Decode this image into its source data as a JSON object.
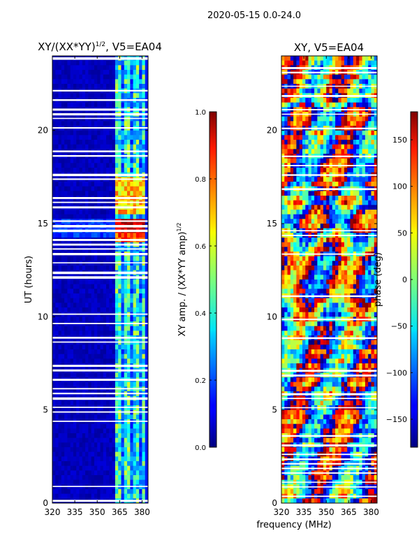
{
  "figure": {
    "suptitle": "2020-05-15 0.0-24.0",
    "shared_xlabel": "frequency (MHz)"
  },
  "chart_data": [
    {
      "type": "heatmap",
      "title_main": "XY/(XX*YY)",
      "title_sup": "1/2",
      "title_tail": ", V5=EA04",
      "ylabel": "UT (hours)",
      "x_ticks": [
        320,
        335,
        350,
        365,
        380
      ],
      "y_ticks": [
        0,
        5,
        10,
        15,
        20
      ],
      "xlim": [
        320,
        384
      ],
      "ylim": [
        0,
        24
      ],
      "colormap": "jet",
      "colorbar": {
        "label_main": "XY amp. / (XX*YY amp)",
        "label_sup": "1/2",
        "ticks": [
          "0.0",
          "0.2",
          "0.4",
          "0.6",
          "0.8",
          "1.0"
        ],
        "range": [
          0.0,
          1.0
        ]
      }
    },
    {
      "type": "heatmap",
      "title": "XY, V5=EA04",
      "x_ticks": [
        320,
        335,
        350,
        365,
        380
      ],
      "y_ticks": [
        0,
        5,
        10,
        15,
        20
      ],
      "xlim": [
        320,
        384
      ],
      "ylim": [
        0,
        24
      ],
      "colormap": "jet",
      "colorbar": {
        "label": "phase (deg)",
        "ticks": [
          "150",
          "100",
          "50",
          "0",
          "−50",
          "−100",
          "−150"
        ],
        "tick_values": [
          150,
          100,
          50,
          0,
          -50,
          -100,
          -150
        ],
        "range": [
          -180,
          180
        ]
      }
    }
  ]
}
